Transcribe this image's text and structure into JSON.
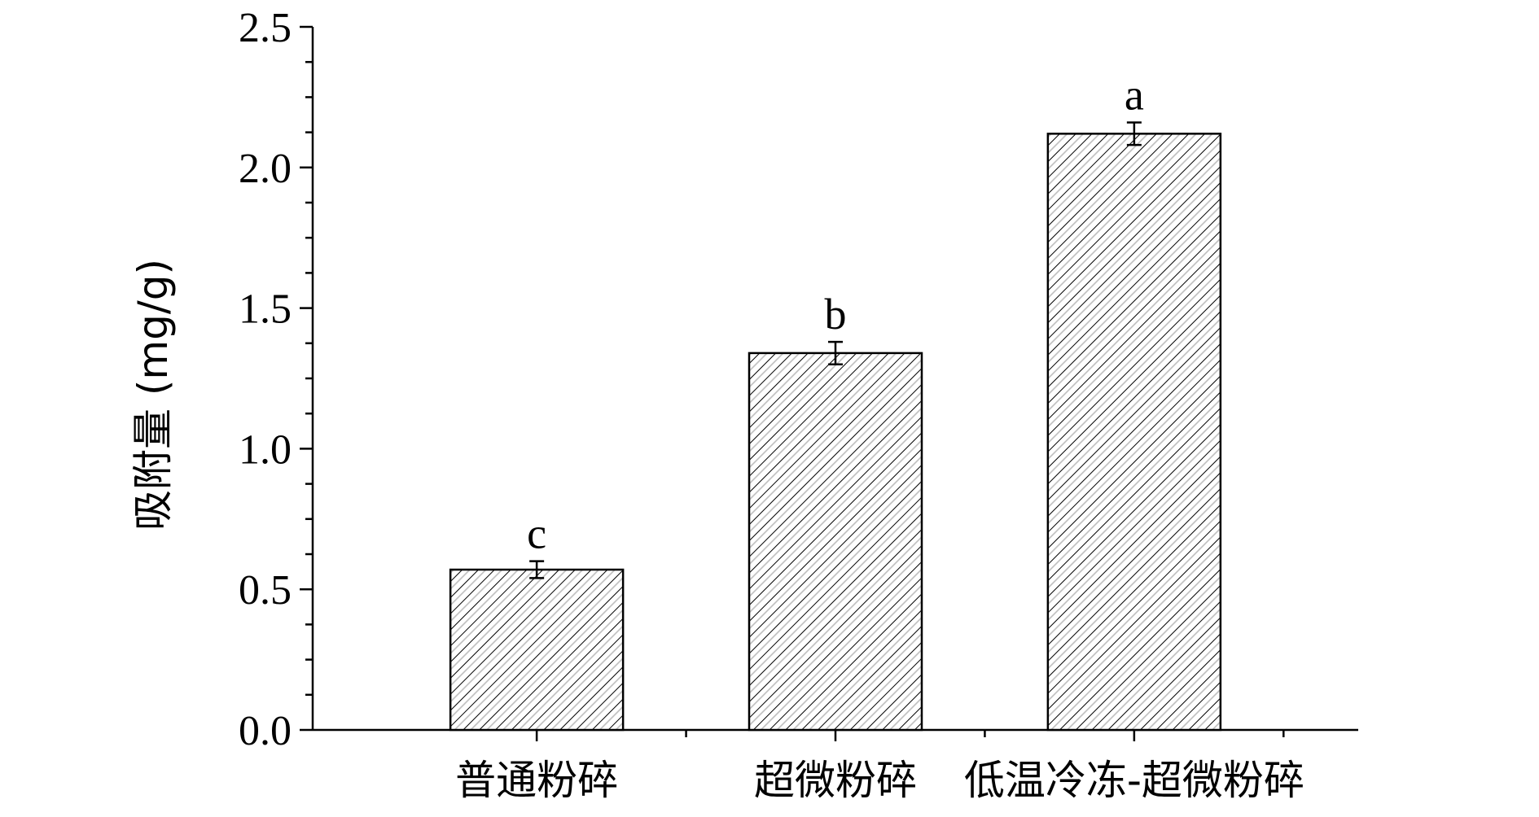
{
  "chart_data": {
    "type": "bar",
    "categories": [
      "普通粉碎",
      "超微粉碎",
      "低温冷冻-超微粉碎"
    ],
    "values": [
      0.57,
      1.34,
      2.12
    ],
    "errors": [
      0.03,
      0.04,
      0.04
    ],
    "significance_labels": [
      "c",
      "b",
      "a"
    ],
    "title": "",
    "xlabel": "",
    "ylabel": "吸附量 (mg/g)",
    "ylim": [
      0,
      2.5
    ],
    "yticks": [
      "0.0",
      "0.5",
      "1.0",
      "1.5",
      "2.0",
      "2.5"
    ],
    "grid": false,
    "bar_fill": "hatched",
    "colors": {
      "bar_edge": "#000000",
      "hatch": "#000000",
      "hatch_light": "#bdbdbd"
    }
  }
}
